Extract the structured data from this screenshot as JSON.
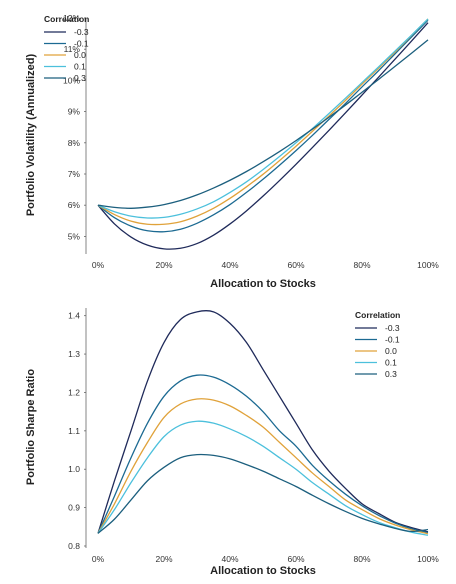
{
  "chart_data": [
    {
      "type": "line",
      "title": "",
      "xlabel": "Allocation to Stocks",
      "ylabel": "Portfolio Volatility (Annualized)",
      "xlim": [
        0,
        100
      ],
      "ylim": [
        4.5,
        12
      ],
      "x_ticks": [
        "0%",
        "20%",
        "40%",
        "60%",
        "80%",
        "100%"
      ],
      "y_ticks": [
        "5%",
        "6%",
        "7%",
        "8%",
        "9%",
        "10%",
        "11%",
        "12%"
      ],
      "grid": false,
      "legend": {
        "title": "Correlation",
        "placement": "top-left"
      },
      "x": [
        0,
        5,
        10,
        15,
        20,
        25,
        30,
        35,
        40,
        45,
        50,
        55,
        60,
        65,
        70,
        75,
        80,
        85,
        90,
        95,
        100
      ],
      "series": [
        {
          "name": "-0.3",
          "color": "#1f2a5a",
          "values": [
            6.0,
            5.4,
            4.98,
            4.72,
            4.6,
            4.62,
            4.77,
            5.04,
            5.4,
            5.82,
            6.29,
            6.79,
            7.31,
            7.85,
            8.4,
            8.96,
            9.53,
            10.1,
            10.68,
            11.26,
            11.85
          ]
        },
        {
          "name": "-0.1",
          "color": "#1c6a92",
          "values": [
            6.0,
            5.6,
            5.33,
            5.18,
            5.15,
            5.23,
            5.42,
            5.69,
            6.02,
            6.41,
            6.83,
            7.28,
            7.75,
            8.24,
            8.75,
            9.26,
            9.79,
            10.31,
            10.85,
            11.39,
            11.93
          ]
        },
        {
          "name": "0.0",
          "color": "#e0a23a",
          "values": [
            6.0,
            5.7,
            5.49,
            5.39,
            5.39,
            5.47,
            5.65,
            5.9,
            6.22,
            6.59,
            6.99,
            7.43,
            7.89,
            8.37,
            8.86,
            9.36,
            9.88,
            10.39,
            10.91,
            11.44,
            11.97
          ]
        },
        {
          "name": "0.1",
          "color": "#4cc0dc",
          "values": [
            6.0,
            5.79,
            5.65,
            5.59,
            5.61,
            5.71,
            5.88,
            6.11,
            6.41,
            6.75,
            7.14,
            7.56,
            8.0,
            8.46,
            8.94,
            9.43,
            9.93,
            10.43,
            10.94,
            11.45,
            11.97
          ]
        },
        {
          "name": "0.3",
          "color": "#1c5f7e",
          "values": [
            6.0,
            5.93,
            5.9,
            5.94,
            6.02,
            6.15,
            6.33,
            6.55,
            6.8,
            7.08,
            7.39,
            7.72,
            8.07,
            8.44,
            8.82,
            9.21,
            9.62,
            10.03,
            10.45,
            10.87,
            11.3
          ]
        }
      ]
    },
    {
      "type": "line",
      "title": "",
      "xlabel": "Allocation to Stocks",
      "ylabel": "Portfolio Sharpe Ratio",
      "xlim": [
        0,
        100
      ],
      "ylim": [
        0.8,
        1.42
      ],
      "x_ticks": [
        "0%",
        "20%",
        "40%",
        "60%",
        "80%",
        "100%"
      ],
      "y_ticks": [
        "0.8",
        "0.9",
        "1.0",
        "1.1",
        "1.2",
        "1.3",
        "1.4"
      ],
      "grid": false,
      "legend": {
        "title": "Correlation",
        "placement": "top-right"
      },
      "x": [
        0,
        5,
        10,
        15,
        20,
        25,
        30,
        35,
        40,
        45,
        50,
        55,
        60,
        65,
        70,
        75,
        80,
        85,
        90,
        95,
        100
      ],
      "series": [
        {
          "name": "-0.3",
          "color": "#1f2a5a",
          "values": [
            0.833,
            0.97,
            1.1,
            1.23,
            1.33,
            1.39,
            1.41,
            1.41,
            1.38,
            1.33,
            1.26,
            1.19,
            1.12,
            1.05,
            0.995,
            0.95,
            0.91,
            0.885,
            0.862,
            0.848,
            0.837
          ]
        },
        {
          "name": "-0.1",
          "color": "#1c6a92",
          "values": [
            0.833,
            0.93,
            1.03,
            1.12,
            1.19,
            1.23,
            1.245,
            1.24,
            1.22,
            1.19,
            1.15,
            1.1,
            1.06,
            1.01,
            0.97,
            0.935,
            0.905,
            0.88,
            0.86,
            0.845,
            0.835
          ]
        },
        {
          "name": "0.0",
          "color": "#e0a23a",
          "values": [
            0.833,
            0.91,
            0.995,
            1.07,
            1.135,
            1.17,
            1.183,
            1.18,
            1.165,
            1.14,
            1.11,
            1.07,
            1.03,
            0.99,
            0.955,
            0.92,
            0.895,
            0.872,
            0.855,
            0.842,
            0.832
          ]
        },
        {
          "name": "0.1",
          "color": "#4cc0dc",
          "values": [
            0.833,
            0.895,
            0.965,
            1.03,
            1.085,
            1.115,
            1.125,
            1.12,
            1.105,
            1.085,
            1.06,
            1.03,
            1.0,
            0.965,
            0.935,
            0.905,
            0.882,
            0.862,
            0.848,
            0.836,
            0.828
          ]
        },
        {
          "name": "0.3",
          "color": "#1c5f7e",
          "values": [
            0.833,
            0.87,
            0.92,
            0.97,
            1.005,
            1.03,
            1.038,
            1.036,
            1.027,
            1.012,
            0.995,
            0.975,
            0.955,
            0.932,
            0.91,
            0.89,
            0.872,
            0.858,
            0.846,
            0.838,
            0.843
          ]
        }
      ]
    }
  ]
}
